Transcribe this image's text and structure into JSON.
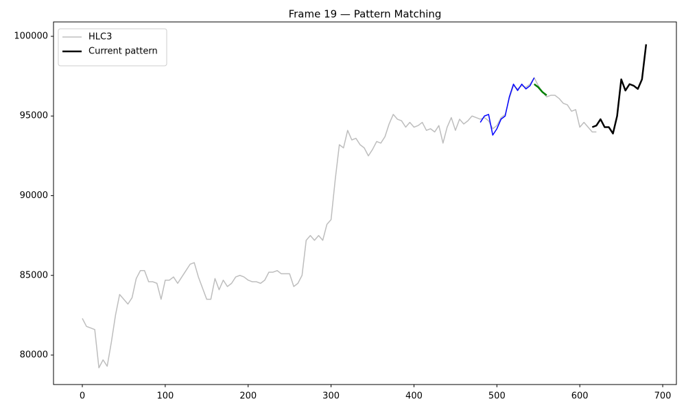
{
  "chart_data": {
    "type": "line",
    "title": "Frame 19 — Pattern Matching",
    "series": [
      {
        "name": "HLC3",
        "color": "#bdbdbd",
        "x": [
          0,
          5,
          10,
          15,
          20,
          25,
          30,
          35,
          40,
          45,
          50,
          55,
          60,
          65,
          70,
          75,
          80,
          85,
          90,
          95,
          100,
          105,
          110,
          115,
          120,
          125,
          130,
          135,
          140,
          145,
          150,
          155,
          160,
          165,
          170,
          175,
          180,
          185,
          190,
          195,
          200,
          205,
          210,
          215,
          220,
          225,
          230,
          235,
          240,
          245,
          250,
          255,
          260,
          265,
          270,
          275,
          280,
          285,
          290,
          295,
          300,
          305,
          310,
          315,
          320,
          325,
          330,
          335,
          340,
          345,
          350,
          355,
          360,
          365,
          370,
          375,
          380,
          385,
          390,
          395,
          400,
          405,
          410,
          415,
          420,
          425,
          430,
          435,
          440,
          445,
          450,
          455,
          460,
          465,
          470,
          475,
          480,
          485,
          490,
          495,
          500,
          505,
          510,
          515,
          520,
          525,
          530,
          535,
          540,
          545,
          550,
          555,
          560,
          565,
          570,
          575,
          580,
          585,
          590,
          595,
          600,
          605,
          610,
          615,
          620
        ],
        "values": [
          82300,
          81800,
          81700,
          81600,
          79200,
          79700,
          79300,
          80800,
          82500,
          83800,
          83500,
          83200,
          83600,
          84800,
          85300,
          85300,
          84600,
          84600,
          84500,
          83500,
          84700,
          84700,
          84900,
          84500,
          84900,
          85300,
          85700,
          85800,
          84900,
          84200,
          83500,
          83500,
          84800,
          84100,
          84700,
          84300,
          84500,
          84900,
          85000,
          84900,
          84700,
          84600,
          84600,
          84500,
          84700,
          85200,
          85200,
          85300,
          85100,
          85100,
          85100,
          84300,
          84500,
          85000,
          87200,
          87500,
          87200,
          87500,
          87200,
          88200,
          88500,
          91000,
          93200,
          93000,
          94100,
          93500,
          93600,
          93200,
          93000,
          92500,
          92900,
          93400,
          93300,
          93700,
          94500,
          95100,
          94800,
          94700,
          94300,
          94600,
          94300,
          94400,
          94600,
          94100,
          94200,
          94000,
          94400,
          93300,
          94300,
          94900,
          94100,
          94800,
          94500,
          94700,
          95000,
          94900,
          94800,
          94900,
          94700,
          94200,
          94400,
          94900,
          95100,
          96100,
          96900,
          96700,
          96900,
          96800,
          97000,
          97400,
          96900,
          96500,
          96200,
          96300,
          96300,
          96100,
          95800,
          95700,
          95300,
          95400,
          94300,
          94600,
          94300,
          94000,
          94000
        ]
      },
      {
        "color": "#0000ff",
        "x": [
          480,
          485,
          490,
          495,
          500,
          505,
          510,
          515,
          520,
          525,
          530,
          535,
          540,
          545
        ],
        "values": [
          94600,
          95000,
          95100,
          93800,
          94200,
          94800,
          95000,
          96200,
          97000,
          96600,
          97000,
          96700,
          96900,
          97400
        ]
      },
      {
        "color": "#008000",
        "x": [
          545,
          550,
          555,
          560
        ],
        "values": [
          97000,
          96800,
          96500,
          96300
        ]
      },
      {
        "name": "Current pattern",
        "color": "#000000",
        "x": [
          615,
          620,
          625,
          630,
          635,
          640,
          645,
          650,
          655,
          660,
          665,
          670,
          675,
          680
        ],
        "values": [
          94300,
          94400,
          94800,
          94300,
          94300,
          93900,
          95000,
          97300,
          96600,
          97000,
          96900,
          96700,
          97300,
          99500
        ]
      }
    ],
    "xlim": [
      -34.75,
      716.5
    ],
    "xticks": [
      0,
      100,
      200,
      300,
      400,
      500,
      600,
      700
    ],
    "ylim": [
      78151,
      100903
    ],
    "yticks": [
      80000,
      85000,
      90000,
      95000,
      100000
    ],
    "legend": "upper left"
  }
}
